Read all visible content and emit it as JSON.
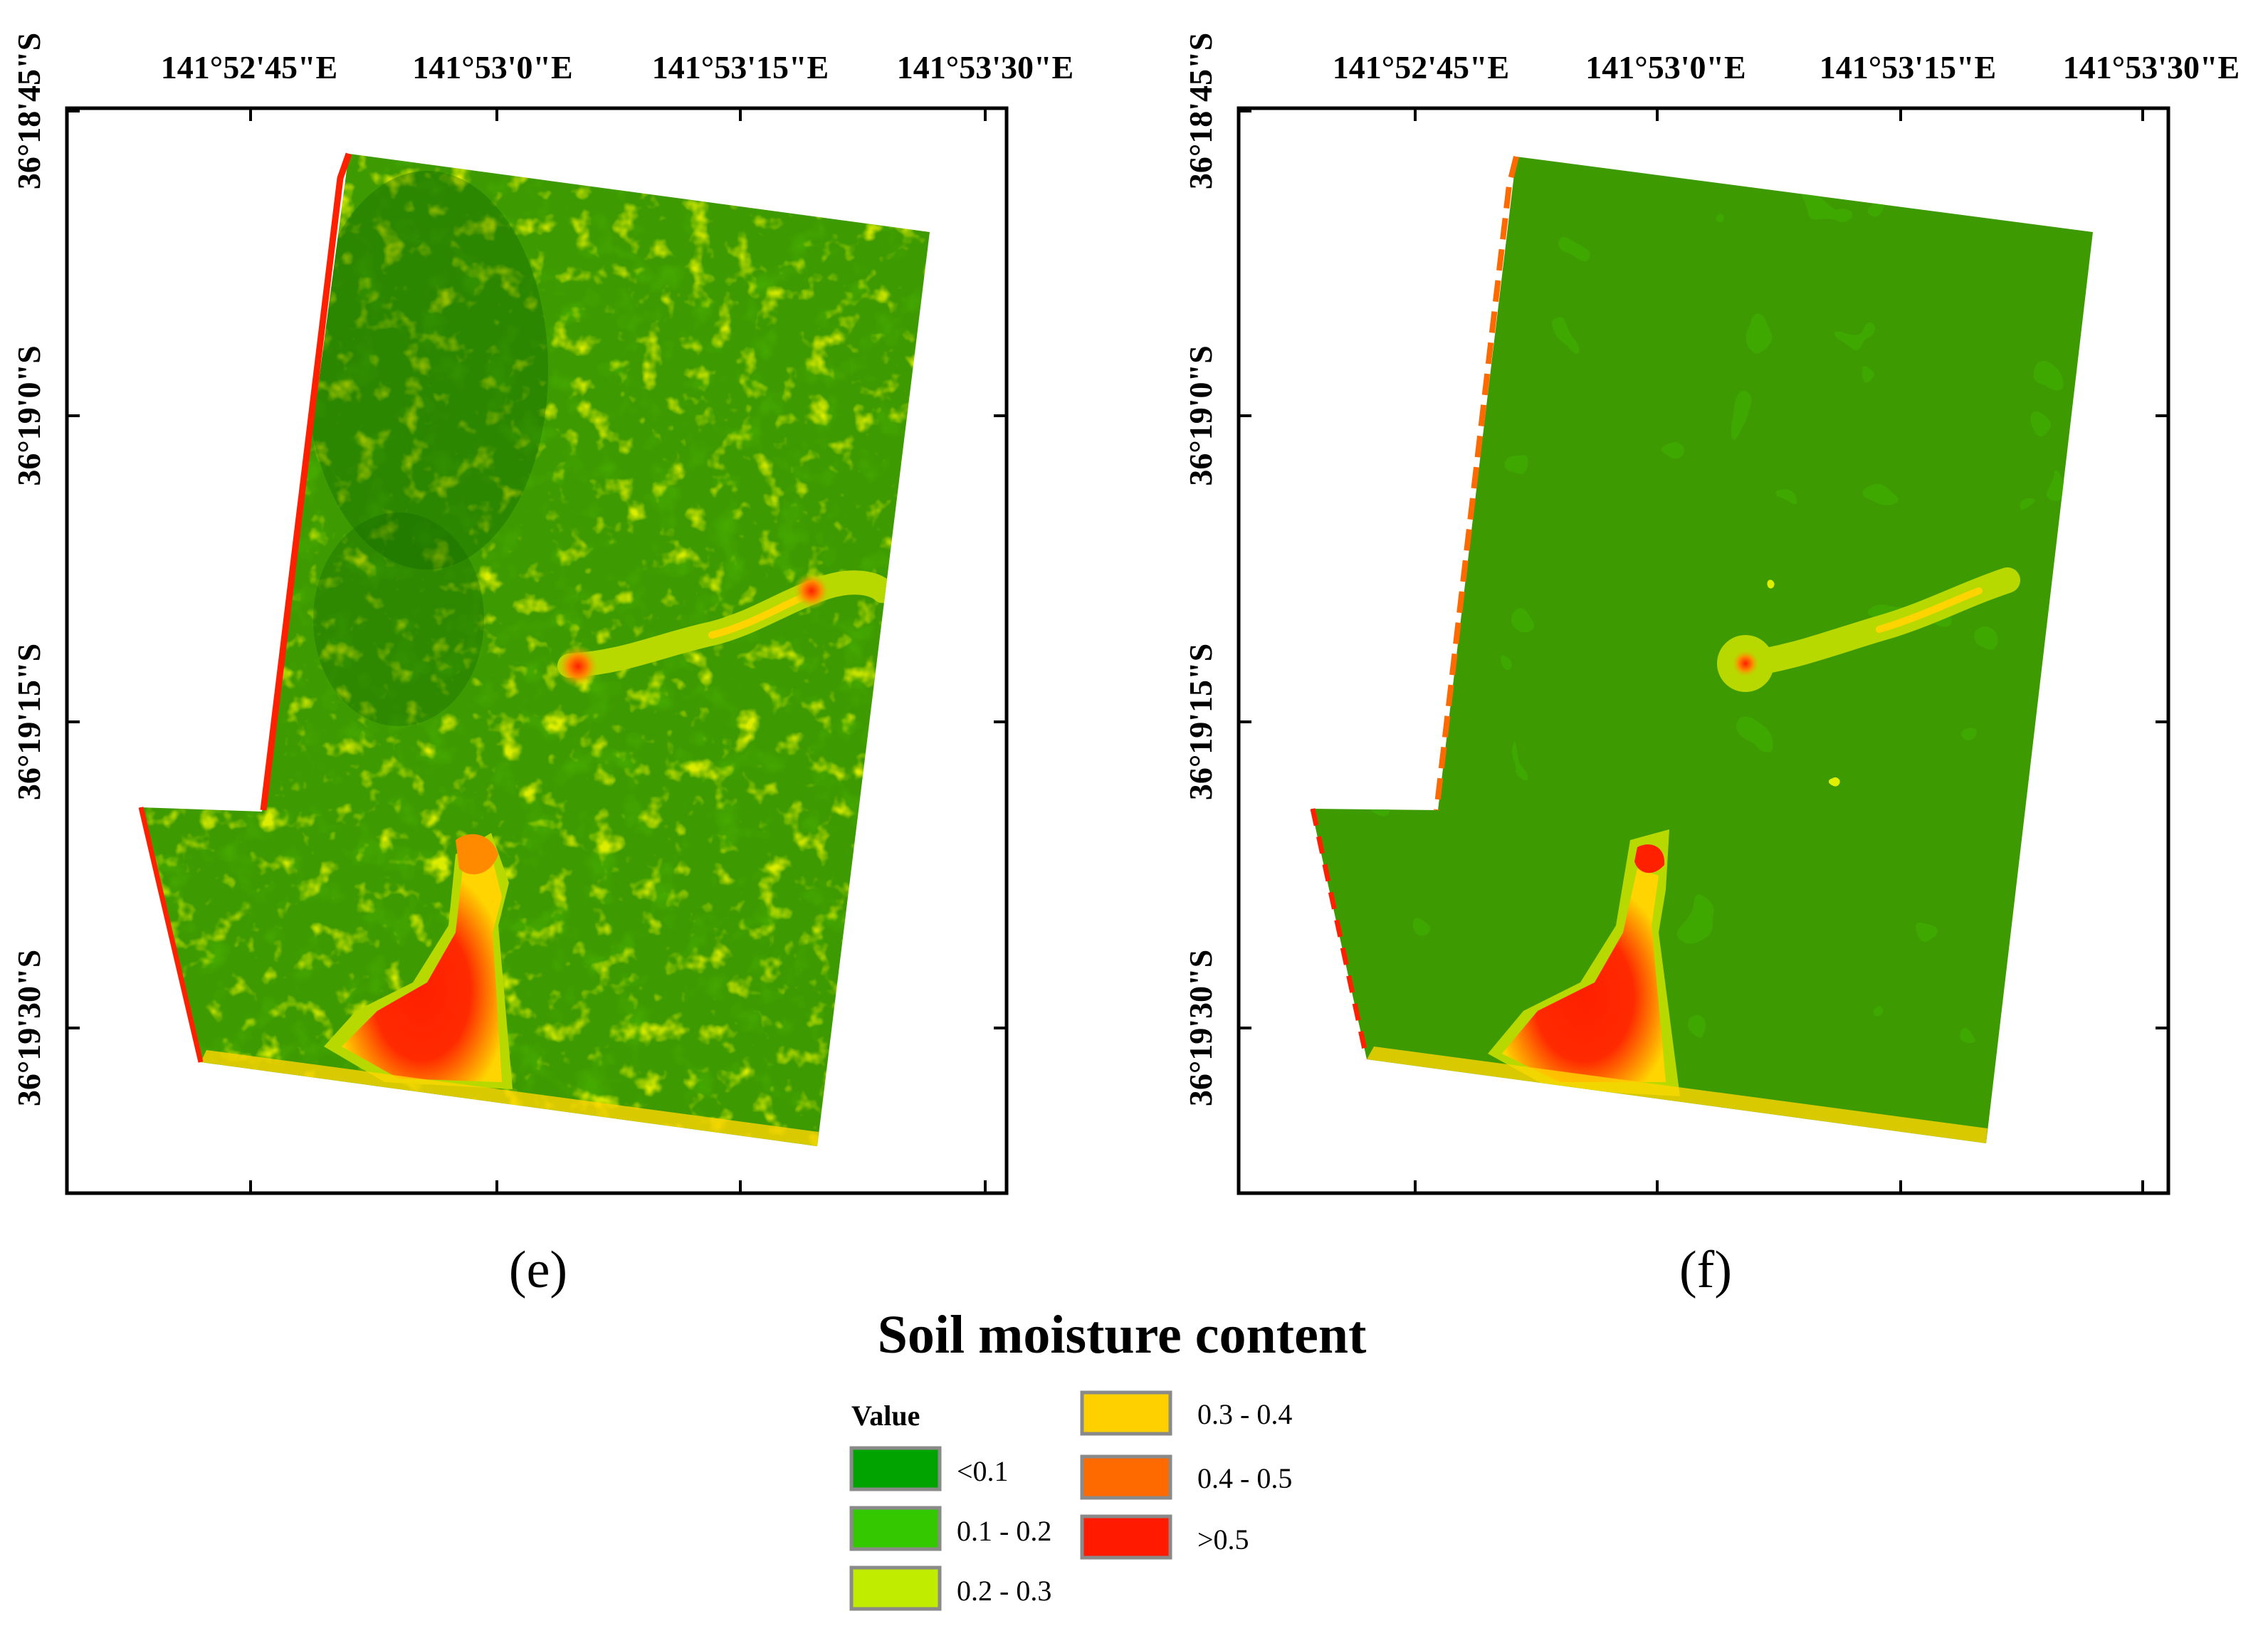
{
  "figure": {
    "legend": {
      "title": "Soil moisture content",
      "header": "Value",
      "classes": [
        {
          "label": "<0.1",
          "color": "#00a300"
        },
        {
          "label": "0.1 - 0.2",
          "color": "#33c800"
        },
        {
          "label": "0.2 - 0.3",
          "color": "#c0ec00"
        },
        {
          "label": "0.3 - 0.4",
          "color": "#ffd000"
        },
        {
          "label": "0.4 - 0.5",
          "color": "#ff6a00"
        },
        {
          "label": ">0.5",
          "color": "#ff1a00"
        }
      ]
    },
    "panels": [
      {
        "id": "e",
        "label": "(e)",
        "longitude_ticks": [
          "141°52'45\"E",
          "141°53'0\"E",
          "141°53'15\"E",
          "141°53'30\"E"
        ],
        "latitude_ticks": [
          "36°18'45\"S",
          "36°19'0\"S",
          "36°19'15\"S",
          "36°19'30\"S"
        ]
      },
      {
        "id": "f",
        "label": "(f)",
        "longitude_ticks": [
          "141°52'45\"E",
          "141°53'0\"E",
          "141°53'15\"E",
          "141°53'30\"E"
        ],
        "latitude_ticks": [
          "36°18'45\"S",
          "36°19'0\"S",
          "36°19'15\"S",
          "36°19'30\"S"
        ]
      }
    ],
    "map_colors": {
      "field_base": "#3d9a00",
      "dark_patch": "#0e6400",
      "light_patch": "#b8d900",
      "yellow": "#ffd400",
      "orange": "#ff8a00",
      "red": "#ff2000"
    }
  }
}
